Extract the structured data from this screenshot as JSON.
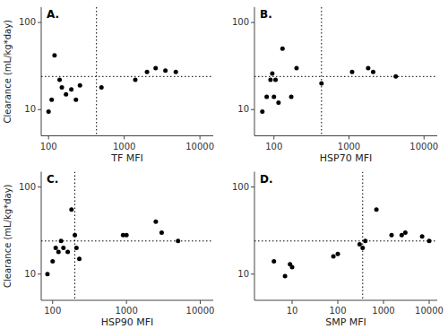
{
  "chart_data": [
    {
      "type": "scatter",
      "annotations": [
        "A."
      ],
      "xlabel": "TF MFI",
      "ylabel": "Clearance (mL/kg*day)",
      "x": [
        100,
        110,
        120,
        140,
        150,
        170,
        200,
        230,
        260,
        500,
        1400,
        2000,
        2600,
        3500,
        4800
      ],
      "values": [
        9.5,
        13,
        42,
        22,
        18,
        15,
        17,
        13,
        19,
        18,
        22,
        27,
        30,
        28,
        27
      ],
      "hline": 24,
      "vline": 430,
      "xlim": [
        80,
        15000
      ],
      "xticks": [
        100,
        1000,
        10000
      ],
      "ylim": [
        5,
        150
      ],
      "yticks": [
        10,
        100
      ],
      "log": true,
      "grid": false,
      "color": "black",
      "marker": "circle"
    },
    {
      "type": "scatter",
      "annotations": [
        "B."
      ],
      "xlabel": "HSP70 MFI",
      "x": [
        70,
        80,
        90,
        95,
        100,
        105,
        115,
        130,
        170,
        200,
        430,
        1100,
        1800,
        2100,
        4200
      ],
      "values": [
        9.5,
        14,
        22,
        26,
        14,
        22,
        12,
        50,
        14,
        30,
        20,
        27,
        30,
        27,
        24
      ],
      "hline": 24,
      "vline": 430,
      "xlim": [
        55,
        15000
      ],
      "xticks": [
        100,
        1000,
        10000
      ],
      "ylim": [
        5,
        150
      ],
      "yticks": [
        10,
        100
      ],
      "log": true,
      "grid": false,
      "color": "black",
      "marker": "circle"
    },
    {
      "type": "scatter",
      "annotations": [
        "C."
      ],
      "xlabel": "HSP90 MFI",
      "ylabel": "Clearance (mL/kg*day)",
      "x": [
        85,
        100,
        110,
        120,
        130,
        140,
        160,
        180,
        200,
        210,
        230,
        900,
        1000,
        2500,
        3000,
        5000
      ],
      "values": [
        10,
        14,
        20,
        18,
        24,
        20,
        18,
        55,
        28,
        20,
        15,
        28,
        28,
        40,
        30,
        24
      ],
      "hline": 24,
      "vline": 200,
      "xlim": [
        70,
        15000
      ],
      "xticks": [
        100,
        1000,
        10000
      ],
      "ylim": [
        5,
        150
      ],
      "yticks": [
        10,
        100
      ],
      "log": true,
      "grid": false,
      "color": "black",
      "marker": "circle"
    },
    {
      "type": "scatter",
      "annotations": [
        "D."
      ],
      "xlabel": "SMP MFI",
      "x": [
        4,
        7,
        9,
        10,
        80,
        100,
        300,
        350,
        400,
        700,
        1500,
        2500,
        3000,
        7000,
        10000
      ],
      "values": [
        14,
        9.5,
        13,
        12,
        16,
        17,
        22,
        20,
        24,
        55,
        28,
        28,
        30,
        27,
        24
      ],
      "hline": 24,
      "vline": 350,
      "xlim": [
        1.5,
        15000
      ],
      "xticks": [
        10,
        100,
        1000,
        10000
      ],
      "ylim": [
        5,
        150
      ],
      "yticks": [
        10,
        100
      ],
      "log": true,
      "grid": false,
      "color": "black",
      "marker": "circle"
    }
  ]
}
